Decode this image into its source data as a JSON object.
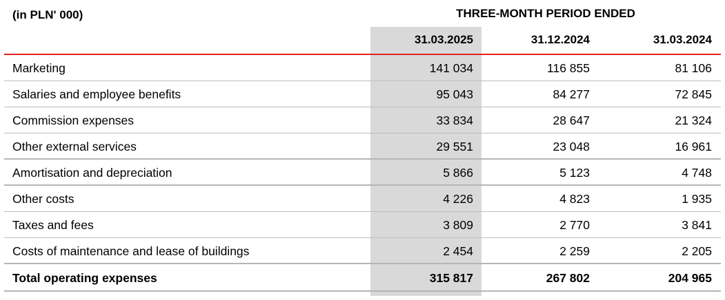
{
  "unit_label": "(in PLN' 000)",
  "period_label": "THREE-MONTH PERIOD ENDED",
  "columns": [
    "31.03.2025",
    "31.12.2024",
    "31.03.2024"
  ],
  "rows": [
    {
      "label": "Marketing",
      "values": [
        "141 034",
        "116 855",
        "81 106"
      ]
    },
    {
      "label": "Salaries and employee benefits",
      "values": [
        "95 043",
        "84 277",
        "72 845"
      ]
    },
    {
      "label": "Commission expenses",
      "values": [
        "33 834",
        "28 647",
        "21 324"
      ]
    },
    {
      "label": "Other external services",
      "values": [
        "29 551",
        "23 048",
        "16 961"
      ]
    },
    {
      "label": "Amortisation and depreciation",
      "values": [
        "5 866",
        "5 123",
        "4 748"
      ]
    },
    {
      "label": "Other costs",
      "values": [
        "4 226",
        "4 823",
        "1 935"
      ]
    },
    {
      "label": "Taxes and fees",
      "values": [
        "3 809",
        "2 770",
        "3 841"
      ]
    },
    {
      "label": "Costs of maintenance and lease of buildings",
      "values": [
        "2 454",
        "2 259",
        "2 205"
      ]
    }
  ],
  "total": {
    "label": "Total operating expenses",
    "values": [
      "315 817",
      "267 802",
      "204 965"
    ]
  },
  "colors": {
    "accent_line": "#e02020",
    "highlight_column": "#d9d9d9"
  }
}
